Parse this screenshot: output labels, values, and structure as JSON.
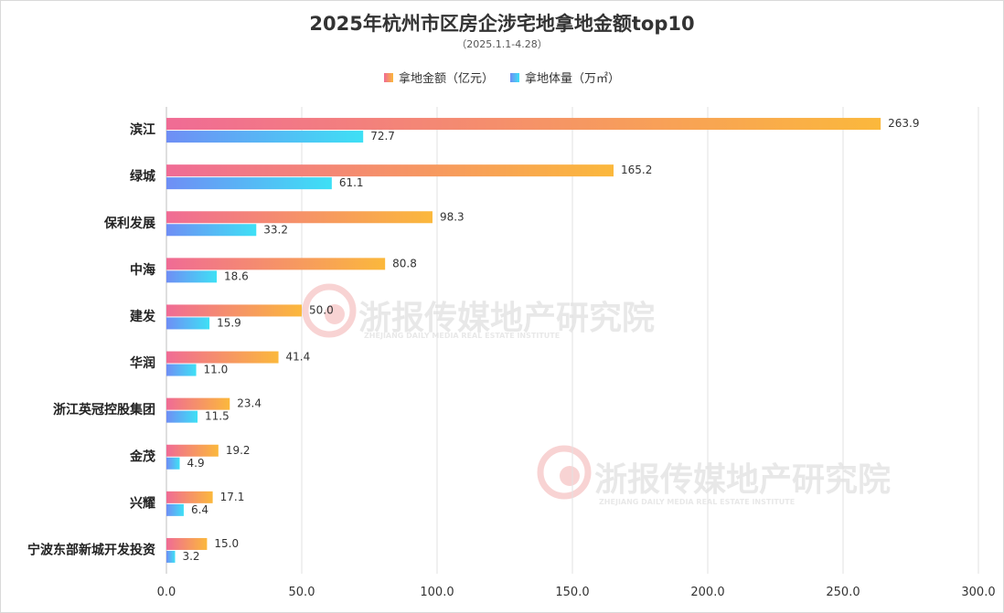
{
  "chart_data": {
    "type": "bar",
    "orientation": "horizontal",
    "title": "2025年杭州市区房企涉宅地拿地金额top10",
    "subtitle": "（2025.1.1-4.28）",
    "categories": [
      "滨江",
      "绿城",
      "保利发展",
      "中海",
      "建发",
      "华润",
      "浙江英冠控股集团",
      "金茂",
      "兴耀",
      "宁波东部新城开发投资"
    ],
    "series": [
      {
        "name": "拿地金额（亿元）",
        "values": [
          263.9,
          165.2,
          98.3,
          80.8,
          50.0,
          41.4,
          23.4,
          19.2,
          17.1,
          15.0
        ],
        "colors": [
          "#f06b95",
          "#fbb83c"
        ]
      },
      {
        "name": "拿地体量（万㎡）",
        "values": [
          72.7,
          61.1,
          33.2,
          18.6,
          15.9,
          11.0,
          11.5,
          4.9,
          6.4,
          3.2
        ],
        "colors": [
          "#6f8ef5",
          "#3ee0f5"
        ]
      }
    ],
    "x_ticks": [
      "0.0",
      "50.0",
      "100.0",
      "150.0",
      "200.0",
      "250.0",
      "300.0"
    ],
    "xlim": [
      0,
      300
    ],
    "grid": true,
    "legend_position": "top-center"
  },
  "watermark": {
    "name": "浙报传媒地产研究院",
    "subtext": "ZHEJIANG DAILY MEDIA REAL ESTATE INSTITUTE"
  }
}
